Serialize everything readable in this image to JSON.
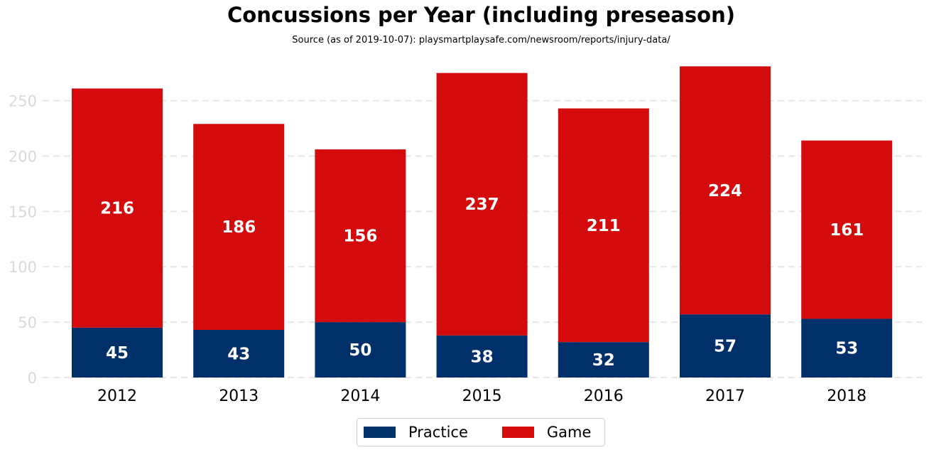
{
  "chart_data": {
    "type": "bar",
    "stacked": true,
    "title": "Concussions per Year (including preseason)",
    "subtitle": "Source (as of 2019-10-07): playsmartplaysafe.com/newsroom/reports/injury-data/",
    "categories": [
      "2012",
      "2013",
      "2014",
      "2015",
      "2016",
      "2017",
      "2018"
    ],
    "series": [
      {
        "name": "Practice",
        "color": "#003069",
        "values": [
          45,
          43,
          50,
          38,
          32,
          57,
          53
        ]
      },
      {
        "name": "Game",
        "color": "#d30b0d",
        "values": [
          216,
          186,
          156,
          237,
          211,
          224,
          161
        ]
      }
    ],
    "yticks": [
      0,
      50,
      100,
      150,
      200,
      250
    ],
    "ylim": [
      0,
      290
    ],
    "grid": true,
    "legend_position": "bottom-center"
  }
}
